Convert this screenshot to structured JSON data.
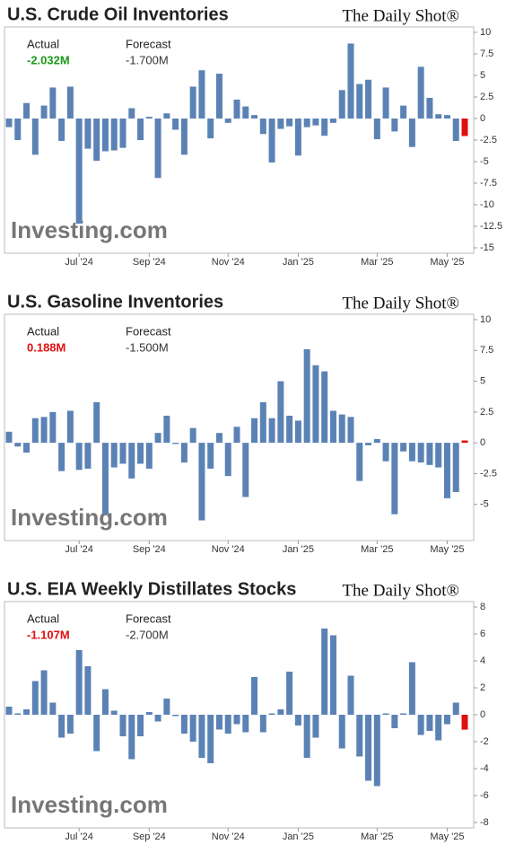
{
  "chart_data": [
    {
      "type": "bar",
      "title": "U.S. Crude Oil Inventories",
      "source_logo": "The Daily Shot®",
      "watermark": "Investing.com",
      "actual_label": "Actual",
      "actual": "-2.032M",
      "actual_color": "#1a9b1a",
      "forecast_label": "Forecast",
      "forecast": "-1.700M",
      "categories": [
        null,
        null,
        null,
        null,
        null,
        null,
        null,
        null,
        "Jul '24",
        null,
        null,
        null,
        null,
        null,
        null,
        null,
        "Sep '24",
        null,
        null,
        null,
        null,
        null,
        null,
        null,
        null,
        "Nov '24",
        null,
        null,
        null,
        null,
        null,
        null,
        null,
        "Jan '25",
        null,
        null,
        null,
        null,
        null,
        null,
        null,
        null,
        "Mar '25",
        null,
        null,
        null,
        null,
        null,
        null,
        null,
        "May '25",
        null,
        null
      ],
      "values": [
        -1.0,
        -2.5,
        1.8,
        -4.2,
        1.5,
        3.6,
        -2.6,
        3.7,
        -12.2,
        -3.5,
        -4.9,
        -3.8,
        -3.7,
        -3.4,
        1.2,
        -2.5,
        0.2,
        -6.9,
        0.6,
        -1.3,
        -4.2,
        3.7,
        5.6,
        -2.3,
        5.2,
        -0.5,
        2.2,
        1.4,
        0.4,
        -1.8,
        -5.1,
        -1.2,
        -0.9,
        -4.3,
        -1.0,
        -0.8,
        -2.0,
        -0.5,
        3.3,
        8.7,
        4.0,
        4.5,
        -2.4,
        3.6,
        -1.5,
        1.5,
        -3.3,
        6.0,
        2.4,
        0.5,
        0.4,
        -2.6,
        -2.032
      ],
      "color": "#5b82b5",
      "latest_color": "#e01010",
      "ylim": [
        -15,
        10
      ],
      "yticks": [
        10,
        7.5,
        5,
        2.5,
        0,
        -2.5,
        -5,
        -7.5,
        -10,
        -12.5,
        -15
      ]
    },
    {
      "type": "bar",
      "title": "U.S. Gasoline Inventories",
      "source_logo": "The Daily Shot®",
      "watermark": "Investing.com",
      "actual_label": "Actual",
      "actual": "0.188M",
      "actual_color": "#e01010",
      "forecast_label": "Forecast",
      "forecast": "-1.500M",
      "categories": [
        null,
        null,
        null,
        null,
        null,
        null,
        null,
        null,
        "Jul '24",
        null,
        null,
        null,
        null,
        null,
        null,
        null,
        "Sep '24",
        null,
        null,
        null,
        null,
        null,
        null,
        null,
        null,
        "Nov '24",
        null,
        null,
        null,
        null,
        null,
        null,
        null,
        "Jan '25",
        null,
        null,
        null,
        null,
        null,
        null,
        null,
        null,
        "Mar '25",
        null,
        null,
        null,
        null,
        null,
        null,
        null,
        "May '25",
        null,
        null
      ],
      "values": [
        0.9,
        -0.3,
        -0.8,
        2.0,
        2.1,
        2.5,
        -2.3,
        2.6,
        -2.2,
        -2.1,
        3.3,
        -5.8,
        -2.0,
        -1.7,
        -2.9,
        -1.7,
        -2.1,
        0.8,
        2.2,
        -0.1,
        -1.6,
        1.2,
        -6.3,
        -2.1,
        0.8,
        -2.7,
        1.3,
        -4.4,
        2.0,
        3.3,
        2.0,
        5.0,
        2.2,
        1.8,
        7.6,
        6.3,
        5.8,
        2.6,
        2.3,
        2.1,
        -3.1,
        -0.2,
        0.3,
        -1.5,
        -5.8,
        -0.7,
        -1.5,
        -1.6,
        -1.8,
        -2.0,
        -4.5,
        -4.0,
        0.188
      ],
      "color": "#5b82b5",
      "latest_color": "#e01010",
      "ylim": [
        -7.5,
        10
      ],
      "yticks": [
        10,
        7.5,
        5,
        2.5,
        0,
        -2.5,
        -5
      ]
    },
    {
      "type": "bar",
      "title": "U.S. EIA Weekly Distillates Stocks",
      "source_logo": "The Daily Shot®",
      "watermark": "Investing.com",
      "actual_label": "Actual",
      "actual": "-1.107M",
      "actual_color": "#e01010",
      "forecast_label": "Forecast",
      "forecast": "-2.700M",
      "categories": [
        null,
        null,
        null,
        null,
        null,
        null,
        null,
        null,
        "Jul '24",
        null,
        null,
        null,
        null,
        null,
        null,
        null,
        "Sep '24",
        null,
        null,
        null,
        null,
        null,
        null,
        null,
        null,
        "Nov '24",
        null,
        null,
        null,
        null,
        null,
        null,
        null,
        "Jan '25",
        null,
        null,
        null,
        null,
        null,
        null,
        null,
        null,
        "Mar '25",
        null,
        null,
        null,
        null,
        null,
        null,
        null,
        "May '25",
        null,
        null
      ],
      "values": [
        0.6,
        0.1,
        0.4,
        2.5,
        3.3,
        0.9,
        -1.7,
        -1.4,
        4.8,
        3.6,
        -2.7,
        1.9,
        0.3,
        -1.6,
        -3.3,
        -1.6,
        0.2,
        -0.5,
        1.2,
        -0.1,
        -1.4,
        -2.0,
        -3.2,
        -3.6,
        -1.1,
        -1.4,
        -0.7,
        -1.3,
        2.8,
        -1.3,
        0.1,
        0.4,
        3.2,
        -0.8,
        -3.2,
        -1.7,
        6.4,
        5.9,
        -2.5,
        2.9,
        -3.1,
        -4.9,
        -5.3,
        0.1,
        -1.0,
        0.1,
        3.9,
        -1.5,
        -1.2,
        -1.9,
        -0.7,
        0.9,
        -1.107
      ],
      "color": "#5b82b5",
      "latest_color": "#e01010",
      "ylim": [
        -8,
        8
      ],
      "yticks": [
        8,
        6,
        4,
        2,
        0,
        -2,
        -4,
        -6,
        -8
      ]
    }
  ]
}
